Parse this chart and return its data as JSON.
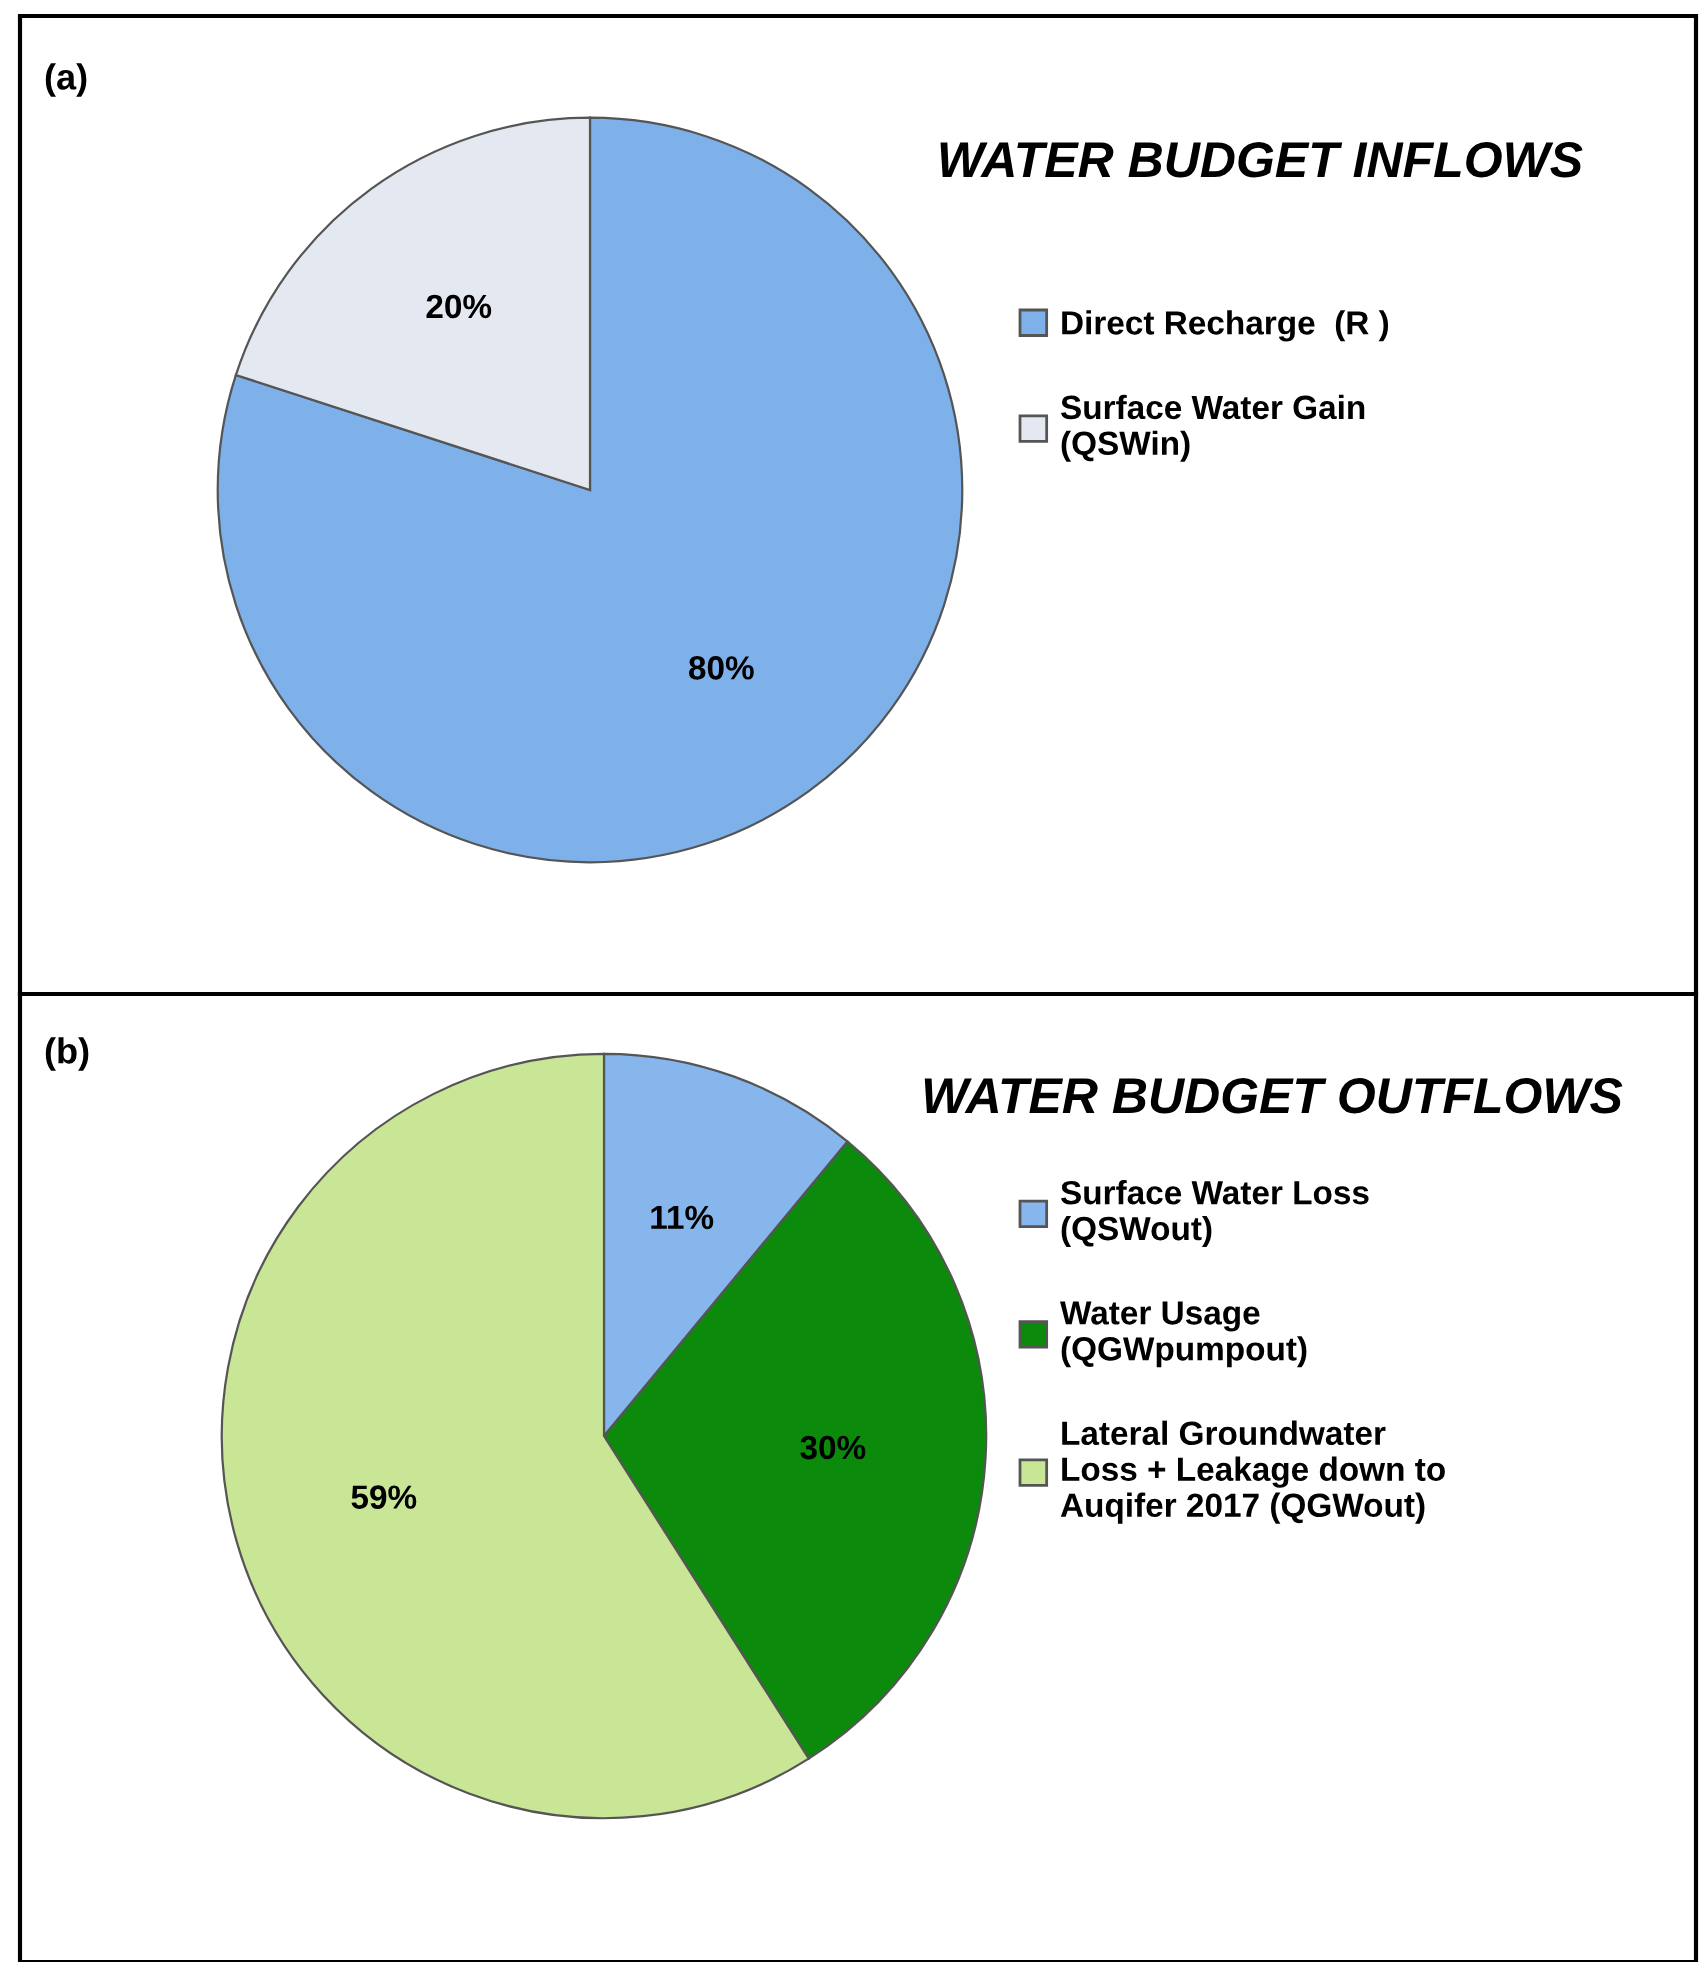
{
  "chart_data": [
    {
      "type": "pie",
      "title": "WATER BUDGET INFLOWS",
      "annotations": [
        "(a)"
      ],
      "categories": [
        "Direct Recharge  (R )",
        "Surface Water Gain\n(QSWin)"
      ],
      "values": [
        80,
        20
      ],
      "value_labels": [
        "80%",
        "20%"
      ],
      "colors": [
        "#7eb0ea",
        "#e4e9f1"
      ],
      "legend": "right"
    },
    {
      "type": "pie",
      "title": "WATER BUDGET OUTFLOWS",
      "annotations": [
        "(b)"
      ],
      "categories": [
        "Surface Water Loss\n(QSWout)",
        "Water Usage\n(QGWpumpout)",
        "Lateral Groundwater\nLoss + Leakage down to\nAuqifer 2017 (QGWout)"
      ],
      "values": [
        11,
        30,
        59
      ],
      "value_labels": [
        "11%",
        "30%",
        "59%"
      ],
      "colors": [
        "#86b6ec",
        "#0b8a0b",
        "#c9e696"
      ],
      "legend": "right"
    }
  ]
}
